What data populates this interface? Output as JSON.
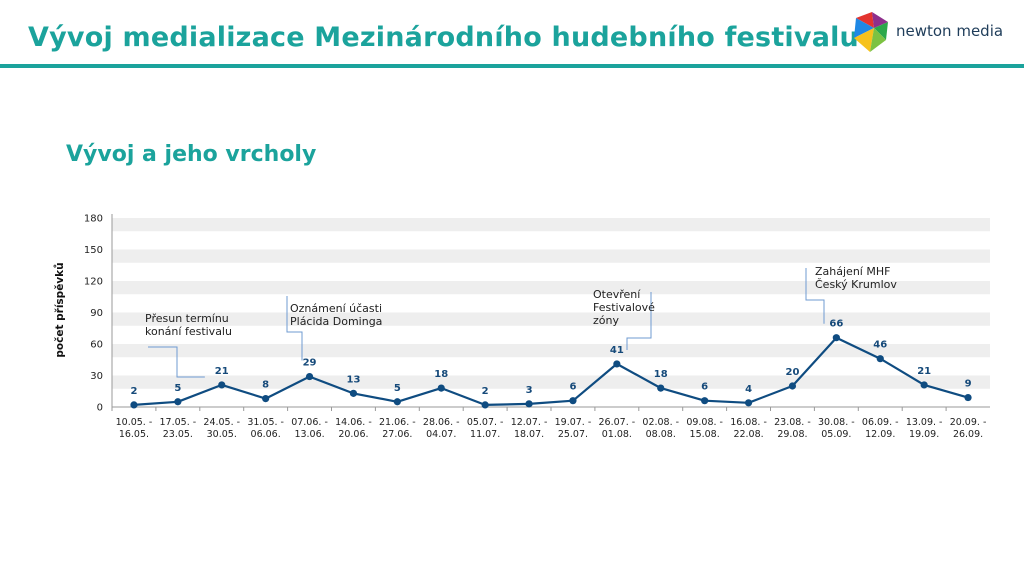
{
  "header": {
    "title": "Vývoj medializace Mezinárodního hudebního festivalu",
    "brand": "newton media",
    "accent": "#1ba39c"
  },
  "section": {
    "title": "Vývoj a jeho vrcholy"
  },
  "chart_data": {
    "type": "line",
    "ylabel": "počet příspěvků",
    "xlabel": "",
    "ylim": [
      0,
      180
    ],
    "yticks": [
      0,
      30,
      60,
      90,
      120,
      150,
      180
    ],
    "grid": "horizontal bands",
    "line_color": "#0f4c81",
    "categories": [
      [
        "10.05. -",
        "16.05."
      ],
      [
        "17.05. -",
        "23.05."
      ],
      [
        "24.05. -",
        "30.05."
      ],
      [
        "31.05. -",
        "06.06."
      ],
      [
        "07.06. -",
        "13.06."
      ],
      [
        "14.06. -",
        "20.06."
      ],
      [
        "21.06. -",
        "27.06."
      ],
      [
        "28.06. -",
        "04.07."
      ],
      [
        "05.07. -",
        "11.07."
      ],
      [
        "12.07. -",
        "18.07."
      ],
      [
        "19.07. -",
        "25.07."
      ],
      [
        "26.07. -",
        "01.08."
      ],
      [
        "02.08. -",
        "08.08."
      ],
      [
        "09.08. -",
        "15.08."
      ],
      [
        "16.08. -",
        "22.08."
      ],
      [
        "23.08. -",
        "29.08."
      ],
      [
        "30.08. -",
        "05.09."
      ],
      [
        "06.09. -",
        "12.09."
      ],
      [
        "13.09. -",
        "19.09."
      ],
      [
        "20.09. -",
        "26.09."
      ]
    ],
    "values": [
      2,
      5,
      21,
      8,
      29,
      13,
      5,
      18,
      2,
      3,
      6,
      41,
      18,
      6,
      4,
      20,
      66,
      46,
      21,
      9
    ],
    "annotations": [
      {
        "index": 1,
        "lines": [
          "Přesun termínu",
          "konání festivalu"
        ]
      },
      {
        "index": 4,
        "lines": [
          "Oznámení účasti",
          "Plácida Dominga"
        ]
      },
      {
        "index": 11,
        "lines": [
          "Otevření",
          "Festivalové",
          "zóny"
        ]
      },
      {
        "index": 16,
        "lines": [
          "Zahájení MHF",
          "Český Krumlov"
        ]
      }
    ]
  }
}
